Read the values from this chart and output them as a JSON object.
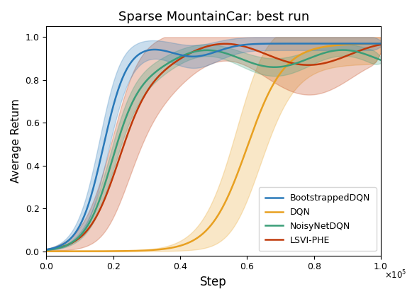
{
  "title": "Sparse MountainCar: best run",
  "xlabel": "Step",
  "ylabel": "Average Return",
  "xlim": [
    0,
    100000
  ],
  "ylim": [
    -0.02,
    1.05
  ],
  "xticks": [
    0,
    20000,
    40000,
    60000,
    80000,
    100000
  ],
  "xtick_labels": [
    "0.0",
    "0.2",
    "0.4",
    "0.6",
    "0.8",
    "1.0"
  ],
  "yticks": [
    0.0,
    0.2,
    0.4,
    0.6,
    0.8,
    1.0
  ],
  "legend_labels": [
    "BootstrappedDQN",
    "DQN",
    "NoisyNetDQN",
    "LSVI-PHE"
  ],
  "colors": {
    "BootstrappedDQN": "#2979b9",
    "DQN": "#e8a020",
    "NoisyNetDQN": "#3a9e78",
    "LSVI-PHE": "#c0390a"
  },
  "alpha_fill": 0.25,
  "n_points": 300
}
